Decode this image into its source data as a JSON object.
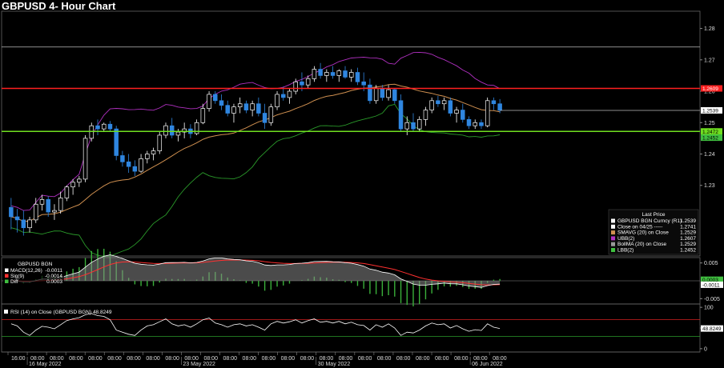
{
  "title": "GBPUSD 4- Hour Chart",
  "colors": {
    "bull": "#ffffff",
    "bear": "#2f86e0",
    "upper_band": "#b030c0",
    "lower_band": "#2a9a2a",
    "sma": "#d09050",
    "resistance": "#ff2020",
    "support": "#70e020",
    "close_line": "#bbbbbb"
  },
  "legend": {
    "header": "Last Price",
    "items": [
      {
        "label": "GBPUSD BGN Curncy  (R1)",
        "value": "1.2539",
        "color": "#ffffff"
      },
      {
        "label": "Close on 04/25 -----",
        "value": "1.2741",
        "color": "#ffffff"
      },
      {
        "label": "SMAVG (20)  on Close",
        "value": "1.2529",
        "color": "#d09050"
      },
      {
        "label": "UBB(2)",
        "value": "1.2607",
        "color": "#b030c0"
      },
      {
        "label": "BollMA (20)  on Close",
        "value": "1.2529",
        "color": "#999999"
      },
      {
        "label": "LBB(2)",
        "value": "1.2452",
        "color": "#40c040"
      }
    ]
  },
  "price_tags": [
    {
      "text": "1.2609",
      "value": 1.2609,
      "bg": "#ff2020",
      "fg": "#ffffff"
    },
    {
      "text": "1.2539",
      "value": 1.2539,
      "bg": "#ffffff",
      "fg": "#000000"
    },
    {
      "text": "1.2472",
      "value": 1.2472,
      "bg": "#70e020",
      "fg": "#000000"
    },
    {
      "text": "1.2452",
      "value": 1.2452,
      "bg": "#40c040",
      "fg": "#000000"
    }
  ],
  "macd_legend": {
    "title": "GBPUSD BGN",
    "items": [
      {
        "label": "MACD(12,26)",
        "value": "-0.0011",
        "color": "#ffffff"
      },
      {
        "label": "Sig(9)",
        "value": "-0.0014",
        "color": "#ff3030"
      },
      {
        "label": "Diff",
        "value": "0.0003",
        "color": "#40c040"
      }
    ]
  },
  "macd_tags": [
    {
      "text": "0.0003",
      "value": 0.0003,
      "bg": "#40c040",
      "fg": "#000000"
    },
    {
      "text": "-0.0011",
      "value": -0.0011,
      "bg": "#ffffff",
      "fg": "#000000"
    }
  ],
  "rsi_legend": {
    "label": "RSI (14)  on Close (GBPUSD BGN)",
    "value": "48.8249"
  },
  "rsi_tag": {
    "text": "48.8249",
    "value": 48.8249
  },
  "x_ticks": [
    "16:00",
    "08:00",
    "08:00",
    "08:00",
    "08:00",
    "08:00",
    "08:00",
    "08:00",
    "08:00",
    "08:00",
    "08:00",
    "08:00",
    "08:00",
    "08:00",
    "08:00",
    "08:00",
    "08:00",
    "08:00",
    "08:00",
    "08:00",
    "08:00",
    "08:00",
    "08:00",
    "08:00",
    "08:00",
    "08:00"
  ],
  "x_dates": [
    {
      "text": "16 May 2022",
      "tick": 1
    },
    {
      "text": "23 May 2022",
      "tick": 9
    },
    {
      "text": "30 May 2022",
      "tick": 16
    },
    {
      "text": "06 Jun 2022",
      "tick": 24
    }
  ],
  "chart_data": {
    "type": "candlestick",
    "title": "GBPUSD 4- Hour Chart",
    "y_ticks": [
      1.24,
      1.25,
      1.26,
      1.27,
      1.28,
      1.23
    ],
    "ylim": [
      1.2075,
      1.2855
    ],
    "close_ref": 1.2741,
    "resistance": 1.2609,
    "support": 1.2472,
    "ohlc": [
      [
        1.223,
        1.226,
        1.216,
        1.22
      ],
      [
        1.22,
        1.2225,
        1.215,
        1.219
      ],
      [
        1.219,
        1.222,
        1.214,
        1.2165
      ],
      [
        1.2165,
        1.22,
        1.215,
        1.219
      ],
      [
        1.219,
        1.226,
        1.218,
        1.224
      ],
      [
        1.224,
        1.227,
        1.222,
        1.2255
      ],
      [
        1.2255,
        1.2265,
        1.22,
        1.2215
      ],
      [
        1.2215,
        1.224,
        1.219,
        1.222
      ],
      [
        1.222,
        1.228,
        1.221,
        1.226
      ],
      [
        1.226,
        1.23,
        1.225,
        1.2295
      ],
      [
        1.2295,
        1.232,
        1.227,
        1.231
      ],
      [
        1.231,
        1.233,
        1.2295,
        1.232
      ],
      [
        1.232,
        1.246,
        1.231,
        1.245
      ],
      [
        1.245,
        1.25,
        1.244,
        1.249
      ],
      [
        1.249,
        1.251,
        1.246,
        1.248
      ],
      [
        1.248,
        1.25,
        1.247,
        1.2495
      ],
      [
        1.2495,
        1.2505,
        1.247,
        1.248
      ],
      [
        1.248,
        1.249,
        1.238,
        1.2395
      ],
      [
        1.2395,
        1.241,
        1.236,
        1.2375
      ],
      [
        1.2375,
        1.24,
        1.234,
        1.236
      ],
      [
        1.236,
        1.238,
        1.233,
        1.2345
      ],
      [
        1.2345,
        1.24,
        1.234,
        1.2385
      ],
      [
        1.2385,
        1.241,
        1.237,
        1.24
      ],
      [
        1.24,
        1.242,
        1.238,
        1.241
      ],
      [
        1.241,
        1.247,
        1.24,
        1.246
      ],
      [
        1.246,
        1.25,
        1.245,
        1.249
      ],
      [
        1.249,
        1.2515,
        1.245,
        1.246
      ],
      [
        1.246,
        1.248,
        1.244,
        1.247
      ],
      [
        1.247,
        1.25,
        1.245,
        1.248
      ],
      [
        1.248,
        1.2495,
        1.245,
        1.2465
      ],
      [
        1.2465,
        1.251,
        1.246,
        1.25
      ],
      [
        1.25,
        1.256,
        1.2495,
        1.2545
      ],
      [
        1.2545,
        1.26,
        1.2535,
        1.259
      ],
      [
        1.259,
        1.26,
        1.256,
        1.257
      ],
      [
        1.257,
        1.259,
        1.254,
        1.2555
      ],
      [
        1.2555,
        1.257,
        1.252,
        1.253
      ],
      [
        1.253,
        1.256,
        1.25,
        1.255
      ],
      [
        1.255,
        1.258,
        1.253,
        1.256
      ],
      [
        1.256,
        1.257,
        1.253,
        1.254
      ],
      [
        1.254,
        1.257,
        1.252,
        1.256
      ],
      [
        1.256,
        1.258,
        1.252,
        1.253
      ],
      [
        1.253,
        1.256,
        1.248,
        1.25
      ],
      [
        1.25,
        1.256,
        1.249,
        1.255
      ],
      [
        1.255,
        1.26,
        1.254,
        1.259
      ],
      [
        1.259,
        1.2615,
        1.257,
        1.258
      ],
      [
        1.258,
        1.261,
        1.256,
        1.26
      ],
      [
        1.26,
        1.264,
        1.259,
        1.263
      ],
      [
        1.263,
        1.266,
        1.26,
        1.262
      ],
      [
        1.262,
        1.265,
        1.261,
        1.264
      ],
      [
        1.264,
        1.268,
        1.263,
        1.267
      ],
      [
        1.267,
        1.269,
        1.264,
        1.265
      ],
      [
        1.265,
        1.267,
        1.263,
        1.266
      ],
      [
        1.266,
        1.268,
        1.264,
        1.265
      ],
      [
        1.265,
        1.267,
        1.263,
        1.2665
      ],
      [
        1.2665,
        1.268,
        1.264,
        1.2645
      ],
      [
        1.2645,
        1.267,
        1.263,
        1.266
      ],
      [
        1.266,
        1.2675,
        1.262,
        1.263
      ],
      [
        1.263,
        1.266,
        1.26,
        1.262
      ],
      [
        1.262,
        1.264,
        1.256,
        1.257
      ],
      [
        1.257,
        1.262,
        1.256,
        1.261
      ],
      [
        1.261,
        1.262,
        1.257,
        1.258
      ],
      [
        1.258,
        1.262,
        1.257,
        1.2605
      ],
      [
        1.2605,
        1.261,
        1.256,
        1.257
      ],
      [
        1.257,
        1.259,
        1.247,
        1.248
      ],
      [
        1.248,
        1.252,
        1.246,
        1.25
      ],
      [
        1.25,
        1.253,
        1.247,
        1.248
      ],
      [
        1.248,
        1.252,
        1.247,
        1.251
      ],
      [
        1.251,
        1.255,
        1.249,
        1.254
      ],
      [
        1.254,
        1.258,
        1.253,
        1.257
      ],
      [
        1.257,
        1.2585,
        1.255,
        1.256
      ],
      [
        1.256,
        1.258,
        1.254,
        1.257
      ],
      [
        1.257,
        1.258,
        1.252,
        1.253
      ],
      [
        1.253,
        1.255,
        1.25,
        1.254
      ],
      [
        1.254,
        1.256,
        1.25,
        1.251
      ],
      [
        1.251,
        1.252,
        1.248,
        1.249
      ],
      [
        1.249,
        1.251,
        1.248,
        1.25
      ],
      [
        1.25,
        1.251,
        1.248,
        1.249
      ],
      [
        1.249,
        1.258,
        1.2485,
        1.257
      ],
      [
        1.257,
        1.258,
        1.254,
        1.256
      ],
      [
        1.256,
        1.2575,
        1.253,
        1.2539
      ]
    ],
    "macd_ylim": [
      -0.0065,
      0.0065
    ],
    "macd_ticks": [
      0.005,
      -0.005
    ],
    "rsi_ylim": [
      -8,
      108
    ],
    "rsi_ticks": [
      100,
      50,
      0
    ],
    "rsi_bands": [
      70,
      30
    ],
    "rsi_values": [
      60,
      55,
      40,
      32,
      45,
      54,
      52,
      48,
      58,
      68,
      72,
      75,
      82,
      85,
      80,
      78,
      70,
      45,
      40,
      35,
      32,
      45,
      55,
      58,
      65,
      72,
      60,
      55,
      58,
      52,
      60,
      70,
      74,
      62,
      58,
      52,
      58,
      60,
      55,
      58,
      52,
      45,
      60,
      66,
      62,
      65,
      70,
      62,
      68,
      72,
      64,
      66,
      62,
      66,
      60,
      64,
      58,
      56,
      45,
      58,
      52,
      60,
      50,
      32,
      40,
      38,
      45,
      55,
      62,
      58,
      60,
      50,
      56,
      48,
      42,
      46,
      44,
      60,
      52,
      48.8
    ]
  }
}
